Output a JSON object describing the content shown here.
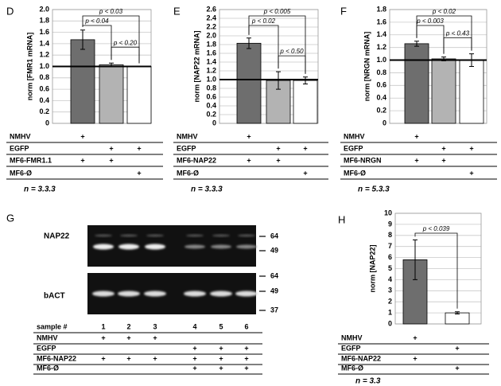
{
  "sign": "+",
  "chart_data": [
    {
      "type": "bar",
      "panel": "D",
      "ylabel": "norm [FMR1 mRNA]",
      "ylim": [
        0,
        2
      ],
      "yticks": [
        0,
        0.2,
        0.4,
        0.6,
        0.8,
        {
          "value": 1,
          "label": "1.0"
        },
        1.2,
        1.4,
        1.6,
        1.8,
        {
          "value": 2,
          "label": "2.0"
        }
      ],
      "grid": true,
      "reference_line": 1,
      "values": [
        1.47,
        1.03,
        1.0
      ],
      "errors": [
        0.17,
        0.03,
        0
      ],
      "colors": [
        "#6e6e6e",
        "#b3b3b3",
        "#ffffff"
      ],
      "annotations": [
        "p < 0.03",
        "p < 0.04",
        "p < 0.20"
      ],
      "table": {
        "rows": [
          {
            "label": "NMHV",
            "plus": [
              true,
              false,
              false
            ]
          },
          {
            "label": "EGFP",
            "plus": [
              false,
              true,
              true
            ]
          },
          {
            "label": "MF6-FMR1.1",
            "plus": [
              true,
              true,
              false
            ]
          },
          {
            "label": "MF6-Ø",
            "plus": [
              false,
              false,
              true
            ]
          }
        ]
      },
      "n": "n = 3.3.3"
    },
    {
      "type": "bar",
      "panel": "E",
      "ylabel": "norm [NAP22 mRNA]",
      "ylim": [
        0,
        2.6
      ],
      "yticks": [
        0,
        0.2,
        0.4,
        0.6,
        0.8,
        {
          "value": 1,
          "label": "1.0"
        },
        1.2,
        1.4,
        1.6,
        1.8,
        {
          "value": 2,
          "label": "2.0"
        },
        2.2,
        2.4,
        2.6
      ],
      "grid": true,
      "reference_line": 1,
      "values": [
        1.83,
        0.98,
        0.98
      ],
      "errors": [
        0.12,
        0.2,
        0.08
      ],
      "colors": [
        "#6e6e6e",
        "#b3b3b3",
        "#ffffff"
      ],
      "annotations": [
        "p < 0.005",
        "p < 0.02",
        "p < 0.50"
      ],
      "table": {
        "rows": [
          {
            "label": "NMHV",
            "plus": [
              true,
              false,
              false
            ]
          },
          {
            "label": "EGFP",
            "plus": [
              false,
              true,
              true
            ]
          },
          {
            "label": "MF6-NAP22",
            "plus": [
              true,
              true,
              false
            ]
          },
          {
            "label": "MF6-Ø",
            "plus": [
              false,
              false,
              true
            ]
          }
        ]
      },
      "n": "n = 3.3.3"
    },
    {
      "type": "bar",
      "panel": "F",
      "ylabel": "norm [NRGN mRNA]",
      "ylim": [
        0,
        1.8
      ],
      "yticks": [
        0,
        0.2,
        0.4,
        0.6,
        0.8,
        {
          "value": 1,
          "label": "1.0"
        },
        1.2,
        1.4,
        1.6,
        1.8
      ],
      "grid": true,
      "reference_line": 1,
      "values": [
        1.26,
        1.02,
        1.0
      ],
      "errors": [
        0.04,
        0.03,
        0.1
      ],
      "colors": [
        "#6e6e6e",
        "#b3b3b3",
        "#ffffff"
      ],
      "annotations": [
        "p < 0.02",
        "p < 0.003",
        "p < 0.43"
      ],
      "table": {
        "rows": [
          {
            "label": "NMHV",
            "plus": [
              true,
              false,
              false
            ]
          },
          {
            "label": "EGFP",
            "plus": [
              false,
              true,
              true
            ]
          },
          {
            "label": "MF6-NRGN",
            "plus": [
              true,
              true,
              false
            ]
          },
          {
            "label": "MF6-Ø",
            "plus": [
              false,
              false,
              true
            ]
          }
        ]
      },
      "n": "n = 5.3.3"
    },
    {
      "type": "bar",
      "panel": "H",
      "ylabel": "norm [NAP22]",
      "ylim": [
        0,
        10
      ],
      "yticks": [
        0,
        1,
        2,
        3,
        4,
        5,
        6,
        7,
        8,
        9,
        10
      ],
      "grid": true,
      "values": [
        5.8,
        1.0
      ],
      "errors": [
        1.8,
        0.1
      ],
      "colors": [
        "#6e6e6e",
        "#ffffff"
      ],
      "annotations": [
        "p < 0.039"
      ],
      "table": {
        "rows": [
          {
            "label": "NMHV",
            "plus": [
              true,
              false
            ]
          },
          {
            "label": "EGFP",
            "plus": [
              false,
              true
            ]
          },
          {
            "label": "MF6-NAP22",
            "plus": [
              true,
              false
            ]
          },
          {
            "label": "MF6-Ø",
            "plus": [
              false,
              true
            ]
          }
        ]
      },
      "n": "n = 3.3"
    }
  ],
  "blot": {
    "panel": "G",
    "bands": [
      "NAP22",
      "bACT"
    ],
    "markers_top": [
      "64",
      "49"
    ],
    "markers_bottom": [
      "64",
      "49",
      "37"
    ],
    "table": {
      "samples_label": "sample #",
      "samples": [
        "1",
        "2",
        "3",
        "4",
        "5",
        "6"
      ],
      "rows": [
        {
          "label": "NMHV",
          "plus": [
            true,
            true,
            true,
            false,
            false,
            false
          ]
        },
        {
          "label": "EGFP",
          "plus": [
            false,
            false,
            false,
            true,
            true,
            true
          ]
        },
        {
          "label": "MF6-NAP22",
          "plus": [
            true,
            true,
            true,
            true,
            true,
            true
          ]
        },
        {
          "label": "MF6-Ø",
          "plus": [
            false,
            false,
            false,
            true,
            true,
            true
          ]
        }
      ]
    }
  }
}
